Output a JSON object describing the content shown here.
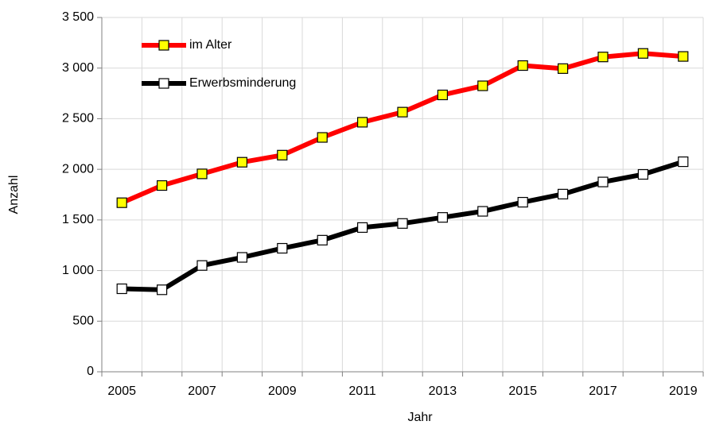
{
  "chart_data": {
    "type": "line",
    "x_label": "Jahr",
    "y_label": "Anzahl",
    "categories": [
      "2005",
      null,
      "2007",
      null,
      "2009",
      null,
      "2011",
      null,
      "2013",
      null,
      "2015",
      null,
      "2017",
      null,
      "2019"
    ],
    "series": [
      {
        "name": "im Alter",
        "color": "#ff0000",
        "marker_color": "#ffff00",
        "values": [
          1670,
          1840,
          1955,
          2070,
          2140,
          2315,
          2465,
          2565,
          2735,
          2825,
          3025,
          2995,
          3110,
          3145,
          3115
        ]
      },
      {
        "name": "Erwerbsminderung",
        "color": "#000000",
        "marker_color": "#ffffff",
        "values": [
          820,
          810,
          1050,
          1130,
          1220,
          1300,
          1425,
          1465,
          1525,
          1585,
          1675,
          1755,
          1875,
          1950,
          2075
        ]
      }
    ],
    "ylim": [
      0,
      3500
    ],
    "yticks": [
      0,
      500,
      {
        "value": 1000,
        "label": "1 000"
      },
      {
        "value": 1500,
        "label": "1 500"
      },
      {
        "value": 2000,
        "label": "2 000"
      },
      {
        "value": 2500,
        "label": "2 500"
      },
      {
        "value": 3000,
        "label": "3 000"
      },
      {
        "value": 3500,
        "label": "3 500"
      }
    ],
    "grid": true,
    "legend": "upper left"
  }
}
